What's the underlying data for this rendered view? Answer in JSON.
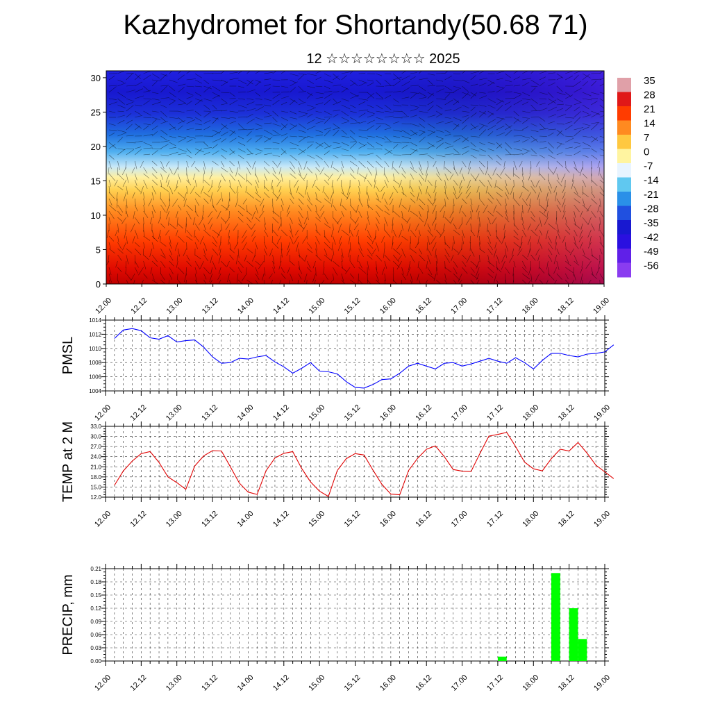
{
  "title": "Kazhydromet for Shortandy(50.68 71)",
  "subtitle": "12 ☆☆☆☆☆☆☆☆ 2025",
  "time_ticks": [
    "12.00",
    "12.12",
    "13.00",
    "13.12",
    "14.00",
    "14.12",
    "15.00",
    "15.12",
    "16.00",
    "16.12",
    "17.00",
    "17.12",
    "18.00",
    "18.12",
    "19.00"
  ],
  "chart_data": [
    {
      "type": "heatmap",
      "name_note": "cross-section with wind barbs",
      "yticks": [
        0,
        5,
        10,
        15,
        20,
        25,
        30
      ],
      "ylim": [
        0,
        31
      ],
      "colorbar": {
        "labels": [
          "35",
          "28",
          "21",
          "14",
          "7",
          "0",
          "-7",
          "-14",
          "-21",
          "-28",
          "-35",
          "-42",
          "-49",
          "-56"
        ],
        "colors": [
          "#e0a0a8",
          "#e01818",
          "#ff3c00",
          "#ff8a20",
          "#ffc840",
          "#fff4a0",
          "#e8f4ff",
          "#60c8f0",
          "#2a90e8",
          "#2050e0",
          "#1818d0",
          "#2a10e0",
          "#6020e8",
          "#8a3cf0"
        ]
      }
    },
    {
      "type": "line",
      "ylabel": "PMSL",
      "ylim": [
        1004,
        1014
      ],
      "yticks": [
        "1014",
        "1012",
        "1010",
        "1008",
        "1006",
        "1004"
      ],
      "color": "#0000ff",
      "values": [
        1011.4,
        1012.6,
        1012.8,
        1012.5,
        1011.5,
        1011.3,
        1011.8,
        1010.9,
        1011.1,
        1011.2,
        1010.2,
        1008.8,
        1007.9,
        1008.0,
        1008.6,
        1008.5,
        1008.8,
        1009.0,
        1008.1,
        1007.4,
        1006.5,
        1007.2,
        1008.0,
        1006.8,
        1006.7,
        1006.4,
        1005.3,
        1004.5,
        1004.4,
        1004.9,
        1005.6,
        1005.7,
        1006.5,
        1007.5,
        1007.9,
        1007.5,
        1007.1,
        1007.9,
        1008.0,
        1007.5,
        1007.8,
        1008.2,
        1008.6,
        1008.2,
        1007.9,
        1008.7,
        1008.0,
        1007.1,
        1008.3,
        1009.3,
        1009.3,
        1009.0,
        1008.8,
        1009.2,
        1009.3,
        1009.5,
        1010.5
      ]
    },
    {
      "type": "line",
      "ylabel": "TEMP at 2 M",
      "ylim": [
        12,
        33
      ],
      "yticks": [
        "33.0",
        "30.0",
        "27.0",
        "24.0",
        "21.0",
        "18.0",
        "15.0",
        "12.0"
      ],
      "color": "#e00000",
      "values": [
        15.5,
        19.8,
        22.7,
        24.9,
        25.5,
        22.3,
        18.0,
        16.3,
        14.3,
        21.2,
        24.2,
        25.8,
        25.7,
        21.0,
        16.2,
        13.5,
        12.8,
        19.8,
        23.6,
        25.0,
        25.5,
        20.5,
        16.5,
        13.8,
        12.2,
        19.9,
        23.4,
        24.9,
        24.5,
        20.0,
        15.8,
        12.9,
        12.7,
        19.9,
        23.5,
        26.2,
        27.2,
        24.0,
        20.2,
        19.7,
        19.6,
        25.0,
        30.1,
        30.6,
        31.2,
        27.0,
        22.4,
        20.4,
        19.8,
        23.4,
        26.2,
        25.7,
        28.2,
        25.1,
        21.5,
        19.5,
        17.5
      ]
    },
    {
      "type": "bar",
      "ylabel": "PRECIP, mm",
      "ylim": [
        0,
        0.21
      ],
      "yticks": [
        "0.21",
        "0.18",
        "0.15",
        "0.12",
        "0.09",
        "0.06",
        "0.03",
        "0.00"
      ],
      "color": "#00ff00",
      "bars": [
        {
          "x": 44,
          "value": 0.01
        },
        {
          "x": 50,
          "value": 0.2
        },
        {
          "x": 52,
          "value": 0.12
        },
        {
          "x": 53,
          "value": 0.05
        }
      ]
    }
  ]
}
